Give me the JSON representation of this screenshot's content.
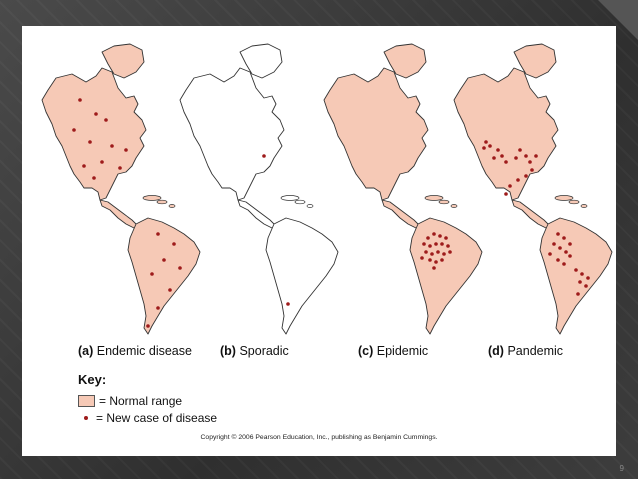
{
  "maps": [
    {
      "letter": "(a)",
      "label": "Endemic disease",
      "fill": "#f6c9b6"
    },
    {
      "letter": "(b)",
      "label": "Sporadic",
      "fill": "#ffffff"
    },
    {
      "letter": "(c)",
      "label": "Epidemic",
      "fill": "#f6c9b6"
    },
    {
      "letter": "(d)",
      "label": "Pandemic",
      "fill": "#f6c9b6"
    }
  ],
  "key": {
    "title": "Key:",
    "normal_range": "= Normal range",
    "new_case": "= New case of disease"
  },
  "copyright": "Copyright © 2006 Pearson Education, Inc., publishing as Benjamin Cummings.",
  "page_number": "9",
  "colors": {
    "normal_range": "#f6c9b6",
    "case_dot": "#9e1b1b",
    "outline": "#333333"
  }
}
